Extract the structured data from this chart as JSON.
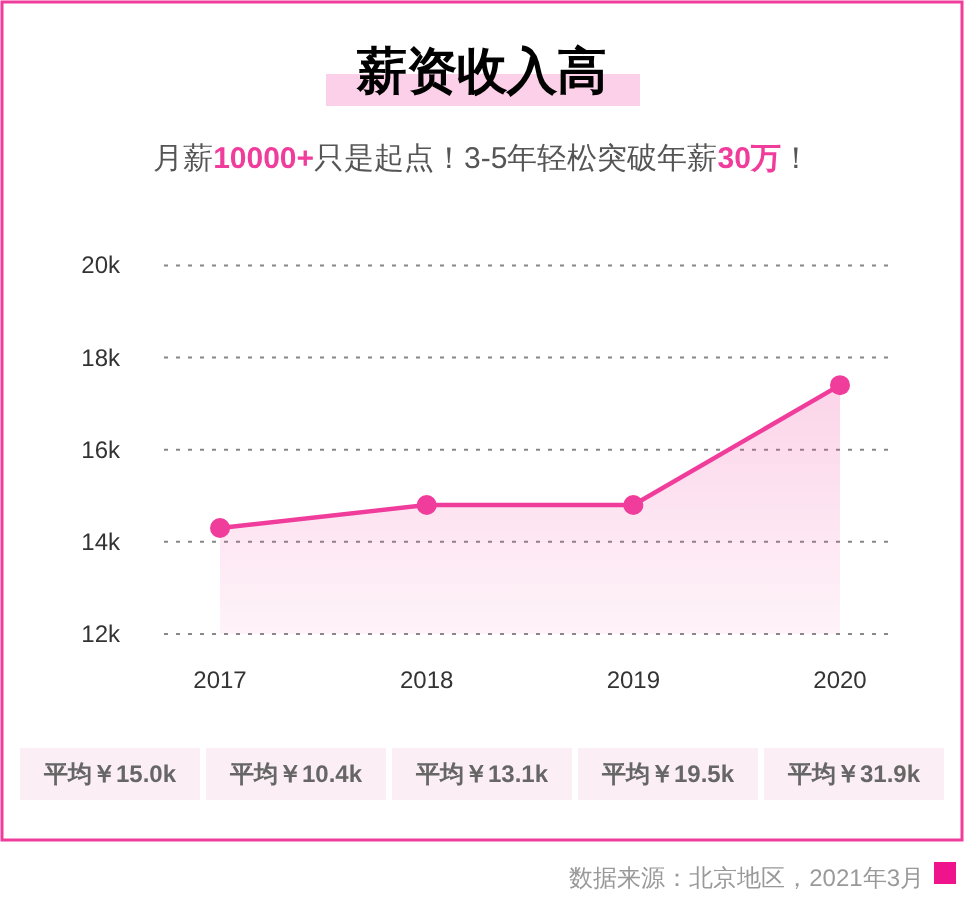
{
  "chart_data": {
    "type": "area",
    "title": "薪资收入高",
    "subtitle": "月薪10000+只是起点！3-5年轻松突破年薪30万！",
    "categories": [
      "2017",
      "2018",
      "2019",
      "2020"
    ],
    "series": [
      {
        "color": "#f03c9b",
        "values": [
          14.3,
          14.8,
          14.8,
          17.4
        ]
      }
    ],
    "ylim": [
      12,
      20
    ],
    "yticks": [
      {
        "value": 12,
        "label": "12k"
      },
      {
        "value": 14,
        "label": "14k"
      },
      {
        "value": 16,
        "label": "16k"
      },
      {
        "value": 18,
        "label": "18k"
      },
      {
        "value": 20,
        "label": "20k"
      }
    ],
    "grid": "y",
    "marker": "circle",
    "line_style": "solid",
    "annotations": [
      "平均￥15.0k",
      "平均￥10.4k",
      "平均￥13.1k",
      "平均￥19.5k",
      "平均￥31.9k",
      "数据来源：北京地区，2021年3月"
    ]
  }
}
